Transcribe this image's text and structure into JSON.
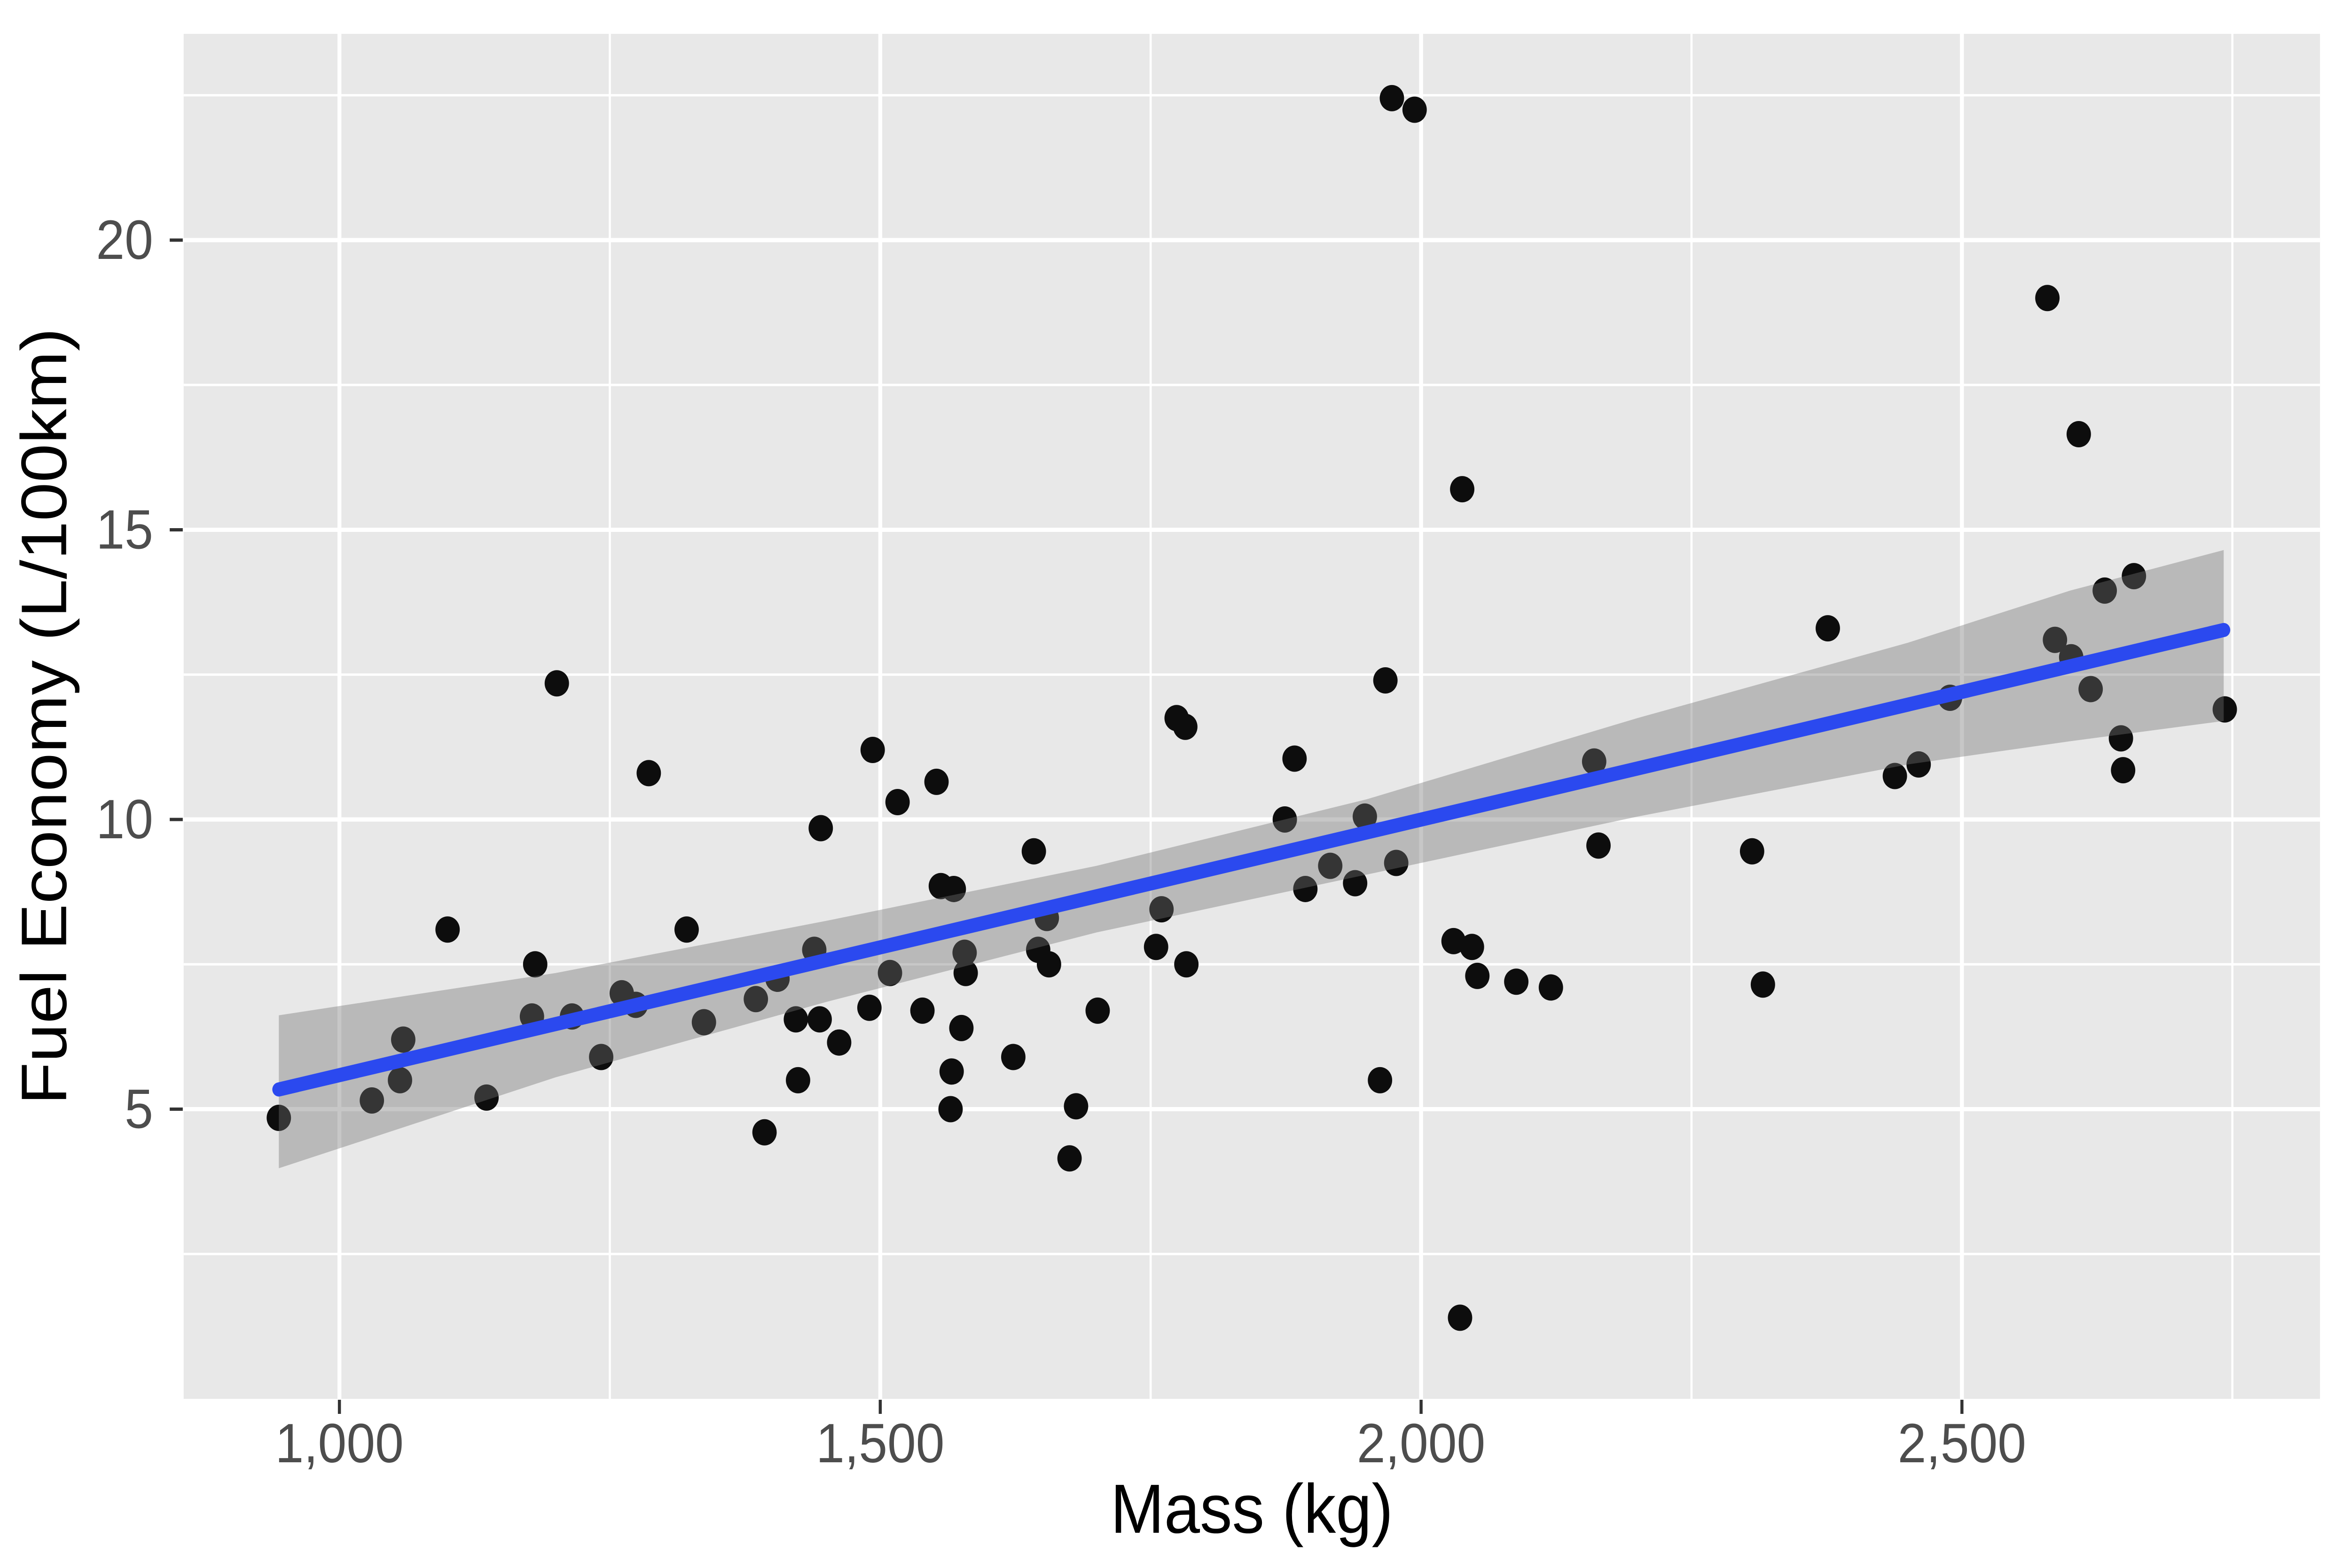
{
  "chart_data": {
    "type": "scatter",
    "title": "",
    "xlabel": "Mass (kg)",
    "ylabel": "Fuel Economy (L/100km)",
    "legend_position": "none",
    "grid": {
      "major": true,
      "minor": true,
      "color": "#FFFFFF",
      "panel_background": "#E8E8E8"
    },
    "x_axis": {
      "tick_values": [
        1000,
        1500,
        2000,
        2500
      ],
      "tick_labels": [
        "1,000",
        "1,500",
        "2,000",
        "2,500"
      ],
      "minor_tick_values": [
        1250,
        1750,
        2250,
        2750
      ],
      "range": [
        856,
        2831
      ]
    },
    "y_axis": {
      "tick_values": [
        5,
        10,
        15,
        20
      ],
      "tick_labels": [
        "5",
        "10",
        "15",
        "20"
      ],
      "minor_tick_values": [
        2.5,
        7.5,
        12.5,
        17.5,
        22.5
      ],
      "range": [
        0,
        23.56
      ]
    },
    "points": [
      [
        944,
        4.85
      ],
      [
        1030,
        5.15
      ],
      [
        1056,
        5.5
      ],
      [
        1059,
        6.2
      ],
      [
        1100,
        8.1
      ],
      [
        1136,
        5.2
      ],
      [
        1181,
        7.5
      ],
      [
        1178,
        6.6
      ],
      [
        1215,
        6.6
      ],
      [
        1242,
        5.9
      ],
      [
        1261,
        7.0
      ],
      [
        1274,
        6.8
      ],
      [
        1201,
        12.35
      ],
      [
        1286,
        10.8
      ],
      [
        1321,
        8.1
      ],
      [
        1337,
        6.5
      ],
      [
        1493,
        11.2
      ],
      [
        1552,
        10.65
      ],
      [
        1516,
        10.3
      ],
      [
        1445,
        9.85
      ],
      [
        1642,
        9.45
      ],
      [
        1774,
        11.75
      ],
      [
        1782,
        11.6
      ],
      [
        1883,
        11.05
      ],
      [
        1874,
        10.0
      ],
      [
        1893,
        8.8
      ],
      [
        1556,
        8.85
      ],
      [
        1568,
        8.8
      ],
      [
        1654,
        8.3
      ],
      [
        1646,
        7.75
      ],
      [
        1656,
        7.5
      ],
      [
        1760,
        8.45
      ],
      [
        1755,
        7.8
      ],
      [
        1783,
        7.5
      ],
      [
        1439,
        7.75
      ],
      [
        1405,
        7.25
      ],
      [
        1385,
        6.9
      ],
      [
        1422,
        6.55
      ],
      [
        1444,
        6.55
      ],
      [
        1462,
        6.15
      ],
      [
        1490,
        6.75
      ],
      [
        1539,
        6.7
      ],
      [
        1575,
        6.4
      ],
      [
        1424,
        5.5
      ],
      [
        1566,
        5.65
      ],
      [
        1565,
        5.0
      ],
      [
        1623,
        5.9
      ],
      [
        1393,
        4.6
      ],
      [
        1681,
        5.05
      ],
      [
        1675,
        4.15
      ],
      [
        1701,
        6.7
      ],
      [
        1578,
        7.7
      ],
      [
        1579,
        7.35
      ],
      [
        1509,
        7.35
      ],
      [
        2160,
        11.0
      ],
      [
        1948,
        10.05
      ],
      [
        1977,
        9.25
      ],
      [
        1916,
        9.2
      ],
      [
        1939,
        8.9
      ],
      [
        2164,
        9.55
      ],
      [
        2306,
        9.45
      ],
      [
        2316,
        7.15
      ],
      [
        2030,
        7.9
      ],
      [
        2047,
        7.8
      ],
      [
        2052,
        7.3
      ],
      [
        2088,
        7.2
      ],
      [
        2120,
        7.1
      ],
      [
        1962,
        5.5
      ],
      [
        2036,
        1.4
      ],
      [
        1973,
        22.45
      ],
      [
        1994,
        22.25
      ],
      [
        2038,
        15.7
      ],
      [
        2376,
        13.3
      ],
      [
        1967,
        12.4
      ],
      [
        2579,
        19.0
      ],
      [
        2608,
        16.65
      ],
      [
        2632,
        13.95
      ],
      [
        2659,
        14.2
      ],
      [
        2586,
        13.1
      ],
      [
        2601,
        12.8
      ],
      [
        2619,
        12.25
      ],
      [
        2489,
        12.1
      ],
      [
        2438,
        10.75
      ],
      [
        2460,
        10.95
      ],
      [
        2647,
        11.4
      ],
      [
        2649,
        10.85
      ],
      [
        2743,
        11.9
      ]
    ],
    "trend_line": {
      "type": "linear_smooth",
      "x": [
        944,
        2742
      ],
      "y": [
        5.34,
        13.27
      ]
    },
    "confidence_band": [
      [
        944,
        3.98,
        6.62
      ],
      [
        1200,
        5.55,
        7.35
      ],
      [
        1450,
        6.85,
        8.25
      ],
      [
        1700,
        8.05,
        9.2
      ],
      [
        1950,
        9.05,
        10.35
      ],
      [
        2200,
        10.05,
        11.75
      ],
      [
        2450,
        10.95,
        13.05
      ],
      [
        2600,
        11.35,
        13.95
      ],
      [
        2742,
        11.7,
        14.65
      ]
    ],
    "colors": {
      "point": "#0D0D0D",
      "trend_line": "#2B49EF",
      "band_fill_rgba": "115,115,115,0.40",
      "panel": "#E8E8E8",
      "gridline": "#FFFFFF",
      "tick_mark": "#333333",
      "tick_label": "#4D4D4D",
      "axis_title": "#000000"
    }
  }
}
